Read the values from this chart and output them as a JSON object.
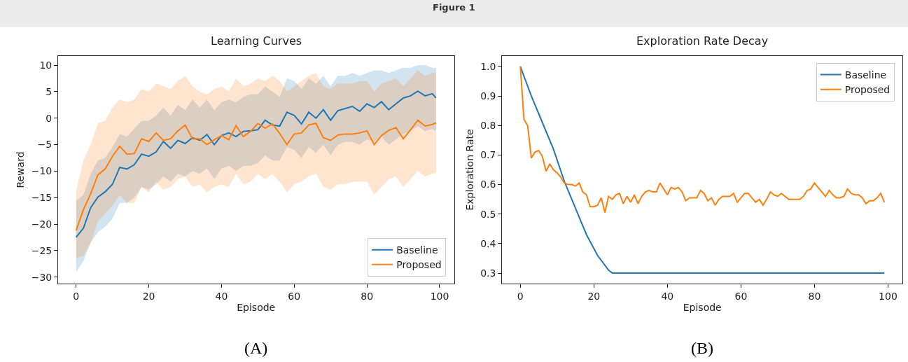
{
  "chart_data": [
    {
      "type": "line",
      "title": "Learning Curves",
      "xlabel": "Episode",
      "ylabel": "Reward",
      "x": [
        0,
        2,
        4,
        6,
        8,
        10,
        12,
        14,
        16,
        18,
        20,
        22,
        24,
        26,
        28,
        30,
        32,
        34,
        36,
        38,
        40,
        42,
        44,
        46,
        48,
        50,
        52,
        54,
        56,
        58,
        60,
        62,
        64,
        66,
        68,
        70,
        72,
        74,
        76,
        78,
        80,
        82,
        84,
        86,
        88,
        90,
        92,
        94,
        96,
        98,
        99
      ],
      "series": [
        {
          "name": "Baseline",
          "color": "#1f77b4",
          "values": [
            -22.5,
            -20.8,
            -16.9,
            -14.9,
            -13.9,
            -12.5,
            -9.3,
            -9.6,
            -8.8,
            -6.8,
            -7.2,
            -6.4,
            -4.4,
            -5.7,
            -4.2,
            -4.8,
            -3.7,
            -4.2,
            -3.1,
            -5.0,
            -3.3,
            -2.8,
            -3.5,
            -2.5,
            -2.4,
            -2.2,
            -0.4,
            -1.3,
            -1.5,
            1.1,
            0.5,
            -1.1,
            1.1,
            0.0,
            1.6,
            -0.4,
            1.4,
            1.8,
            2.2,
            1.3,
            2.7,
            2.0,
            3.1,
            1.6,
            2.7,
            3.8,
            4.2,
            5.1,
            4.2,
            4.6,
            3.8
          ],
          "upper": [
            -15.6,
            -14.5,
            -10.5,
            -8.0,
            -7.5,
            -5.5,
            -3.0,
            -3.5,
            -2.0,
            -0.5,
            -0.5,
            0.5,
            2.0,
            0.5,
            2.5,
            1.5,
            3.5,
            2.0,
            3.5,
            1.5,
            3.0,
            3.5,
            3.0,
            4.0,
            4.5,
            4.5,
            6.0,
            5.0,
            4.0,
            7.5,
            7.0,
            5.5,
            7.5,
            6.5,
            8.0,
            6.0,
            8.0,
            8.0,
            8.5,
            8.0,
            8.5,
            9.0,
            9.0,
            8.5,
            9.0,
            9.5,
            9.5,
            10.0,
            10.0,
            9.5,
            9.5
          ],
          "lower": [
            -29.0,
            -27.0,
            -23.5,
            -21.5,
            -20.5,
            -19.0,
            -16.0,
            -16.0,
            -15.0,
            -13.0,
            -13.5,
            -12.5,
            -11.0,
            -12.0,
            -10.5,
            -11.0,
            -10.0,
            -10.5,
            -9.5,
            -11.5,
            -9.5,
            -9.0,
            -10.0,
            -9.0,
            -9.0,
            -8.5,
            -7.0,
            -8.0,
            -8.0,
            -5.5,
            -6.0,
            -7.5,
            -5.5,
            -6.5,
            -5.0,
            -7.0,
            -5.0,
            -4.5,
            -4.5,
            -5.0,
            -4.0,
            -4.5,
            -3.5,
            -5.0,
            -4.0,
            -3.0,
            -2.5,
            -1.5,
            -2.5,
            -2.0,
            -2.5
          ]
        },
        {
          "name": "Proposed",
          "color": "#ff7f0e",
          "values": [
            -21.2,
            -17.3,
            -14.3,
            -10.7,
            -9.6,
            -7.2,
            -5.3,
            -6.8,
            -6.7,
            -3.9,
            -4.4,
            -2.8,
            -4.2,
            -3.9,
            -2.4,
            -1.3,
            -3.9,
            -3.9,
            -5.0,
            -4.1,
            -3.3,
            -4.1,
            -1.4,
            -3.5,
            -2.5,
            -1.0,
            -1.9,
            -1.1,
            -2.9,
            -5.0,
            -3.0,
            -2.8,
            -1.3,
            -1.0,
            -3.7,
            -4.2,
            -3.2,
            -3.0,
            -3.0,
            -2.8,
            -2.4,
            -5.0,
            -3.3,
            -2.3,
            -1.8,
            -3.9,
            -2.2,
            -0.4,
            -1.5,
            -1.2,
            -0.9
          ],
          "upper": [
            -13.8,
            -8.0,
            -5.0,
            -1.0,
            -0.5,
            2.0,
            3.5,
            3.0,
            3.5,
            5.5,
            5.0,
            6.5,
            6.0,
            5.5,
            7.0,
            8.0,
            6.0,
            5.0,
            4.5,
            5.5,
            6.0,
            5.0,
            7.5,
            6.0,
            6.5,
            7.5,
            7.0,
            8.0,
            7.0,
            5.0,
            6.0,
            7.0,
            8.0,
            8.5,
            6.0,
            5.5,
            6.5,
            6.5,
            6.5,
            7.0,
            7.0,
            5.0,
            6.5,
            7.0,
            7.5,
            6.0,
            7.5,
            9.0,
            8.0,
            8.5,
            8.6
          ],
          "lower": [
            -26.4,
            -26.0,
            -23.5,
            -19.5,
            -18.0,
            -16.5,
            -14.5,
            -16.0,
            -16.0,
            -13.0,
            -14.0,
            -12.0,
            -13.5,
            -13.0,
            -11.5,
            -11.0,
            -13.0,
            -12.5,
            -14.0,
            -13.0,
            -12.5,
            -13.0,
            -10.5,
            -12.5,
            -12.0,
            -10.5,
            -11.5,
            -10.5,
            -12.0,
            -14.0,
            -12.5,
            -12.0,
            -11.0,
            -10.5,
            -13.0,
            -13.5,
            -12.5,
            -12.5,
            -12.0,
            -12.0,
            -12.0,
            -14.5,
            -13.0,
            -11.5,
            -11.0,
            -13.0,
            -11.5,
            -10.0,
            -11.0,
            -10.5,
            -10.3
          ]
        }
      ],
      "xlim": [
        -4.95,
        103.95
      ],
      "xticks": [
        0,
        20,
        40,
        60,
        80,
        100
      ],
      "ylim": [
        -31.2,
        11.7
      ],
      "yticks": [
        -30,
        -25,
        -20,
        -15,
        -10,
        -5,
        0,
        5,
        10
      ],
      "legend": "bottom right",
      "annotations": [
        "Figure 1",
        "(A)"
      ]
    },
    {
      "type": "line",
      "title": "Exploration Rate Decay",
      "xlabel": "Episode",
      "ylabel": "Exploration Rate",
      "series": [
        {
          "name": "Baseline",
          "color": "#1f77b4",
          "x": [
            0,
            3,
            6,
            9,
            12,
            15,
            18,
            21,
            24,
            25,
            99
          ],
          "values": [
            1.0,
            0.9,
            0.81,
            0.72,
            0.61,
            0.52,
            0.43,
            0.36,
            0.31,
            0.3,
            0.3
          ]
        },
        {
          "name": "Proposed",
          "color": "#ff7f0e",
          "x": [
            0,
            1,
            2,
            3,
            4,
            5,
            6,
            7,
            8,
            9,
            10,
            11,
            12,
            13,
            14,
            15,
            16,
            17,
            18,
            19,
            20,
            21,
            22,
            23,
            24,
            25,
            26,
            27,
            28,
            29,
            30,
            31,
            32,
            33,
            34,
            35,
            36,
            37,
            38,
            39,
            40,
            41,
            42,
            43,
            44,
            45,
            46,
            47,
            48,
            49,
            50,
            51,
            52,
            53,
            54,
            55,
            56,
            57,
            58,
            59,
            60,
            61,
            62,
            63,
            64,
            65,
            66,
            67,
            68,
            69,
            70,
            71,
            72,
            73,
            74,
            75,
            76,
            77,
            78,
            79,
            80,
            81,
            82,
            83,
            84,
            85,
            86,
            87,
            88,
            89,
            90,
            91,
            92,
            93,
            94,
            95,
            96,
            97,
            98,
            99
          ],
          "values": [
            1.0,
            0.82,
            0.8,
            0.69,
            0.71,
            0.715,
            0.695,
            0.645,
            0.67,
            0.65,
            0.64,
            0.625,
            0.605,
            0.6,
            0.6,
            0.595,
            0.605,
            0.575,
            0.565,
            0.525,
            0.525,
            0.53,
            0.555,
            0.505,
            0.56,
            0.55,
            0.565,
            0.57,
            0.535,
            0.56,
            0.54,
            0.565,
            0.535,
            0.56,
            0.575,
            0.58,
            0.575,
            0.575,
            0.605,
            0.585,
            0.565,
            0.59,
            0.585,
            0.59,
            0.575,
            0.545,
            0.555,
            0.555,
            0.555,
            0.58,
            0.57,
            0.545,
            0.555,
            0.53,
            0.55,
            0.56,
            0.56,
            0.56,
            0.57,
            0.54,
            0.555,
            0.57,
            0.57,
            0.555,
            0.54,
            0.55,
            0.53,
            0.55,
            0.575,
            0.565,
            0.56,
            0.57,
            0.56,
            0.55,
            0.55,
            0.55,
            0.55,
            0.56,
            0.58,
            0.585,
            0.605,
            0.59,
            0.575,
            0.56,
            0.58,
            0.565,
            0.555,
            0.555,
            0.56,
            0.585,
            0.57,
            0.565,
            0.565,
            0.555,
            0.535,
            0.545,
            0.545,
            0.555,
            0.57,
            0.54
          ]
        }
      ],
      "xlim": [
        -4.95,
        103.95
      ],
      "xticks": [
        0,
        20,
        40,
        60,
        80,
        100
      ],
      "ylim": [
        0.265,
        1.035
      ],
      "yticks": [
        0.3,
        0.4,
        0.5,
        0.6,
        0.7,
        0.8,
        0.9,
        {
          "value": 1.0,
          "label": "1.0"
        }
      ],
      "legend": "top right",
      "annotations": [
        "(B)"
      ]
    }
  ]
}
